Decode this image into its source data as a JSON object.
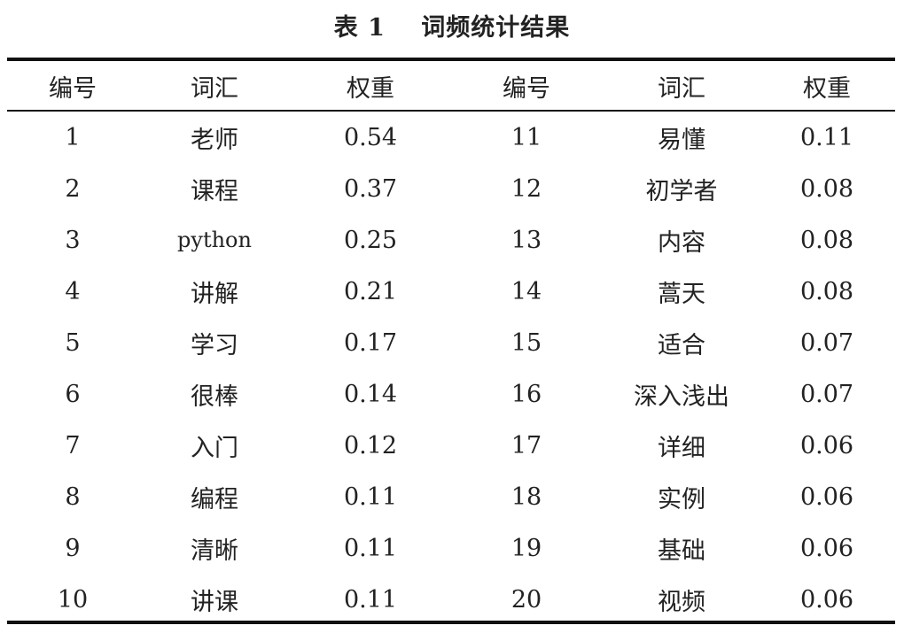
{
  "caption": {
    "label": "表 1",
    "title": "词频统计结果"
  },
  "chart_data": {
    "type": "table",
    "columns": [
      "编号",
      "词汇",
      "权重",
      "编号",
      "词汇",
      "权重"
    ],
    "rows": [
      [
        "1",
        "老师",
        "0.54",
        "11",
        "易懂",
        "0.11"
      ],
      [
        "2",
        "课程",
        "0.37",
        "12",
        "初学者",
        "0.08"
      ],
      [
        "3",
        "python",
        "0.25",
        "13",
        "内容",
        "0.08"
      ],
      [
        "4",
        "讲解",
        "0.21",
        "14",
        "蒿天",
        "0.08"
      ],
      [
        "5",
        "学习",
        "0.17",
        "15",
        "适合",
        "0.07"
      ],
      [
        "6",
        "很棒",
        "0.14",
        "16",
        "深入浅出",
        "0.07"
      ],
      [
        "7",
        "入门",
        "0.12",
        "17",
        "详细",
        "0.06"
      ],
      [
        "8",
        "编程",
        "0.11",
        "18",
        "实例",
        "0.06"
      ],
      [
        "9",
        "清晰",
        "0.11",
        "19",
        "基础",
        "0.06"
      ],
      [
        "10",
        "讲课",
        "0.11",
        "20",
        "视频",
        "0.06"
      ]
    ]
  }
}
